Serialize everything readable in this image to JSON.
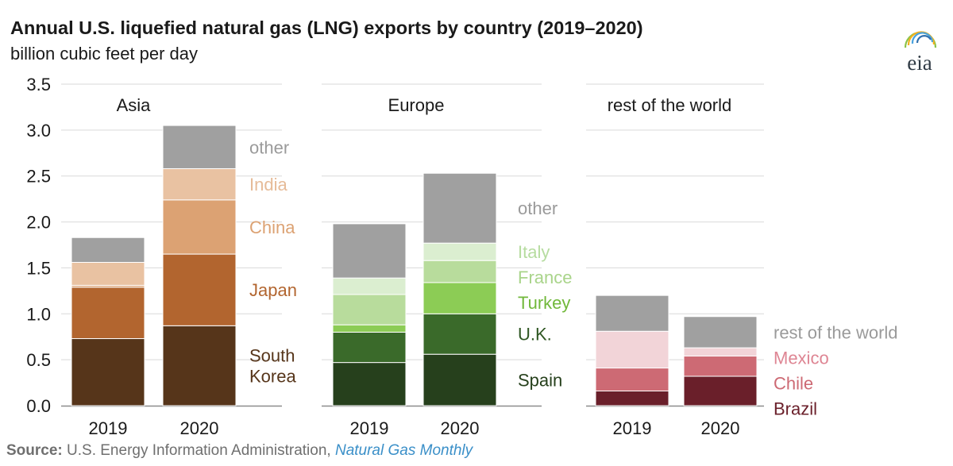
{
  "header": {
    "title": "Annual U.S. liquefied natural gas (LNG) exports by country (2019–2020)",
    "subtitle": "billion cubic feet per day"
  },
  "logo": {
    "text": "eia",
    "icon": "eia-logo-icon"
  },
  "source": {
    "label": "Source:",
    "org": "U.S. Energy Information Administration,",
    "publication": "Natural Gas Monthly"
  },
  "colors": {
    "gridline": "#d9d9d9",
    "axis": "#8c8c8c",
    "text": "#1a1a1a"
  },
  "chart_data": {
    "type": "bar",
    "stacked": true,
    "title": "Annual U.S. liquefied natural gas (LNG) exports by country (2019–2020)",
    "ylabel": "billion cubic feet per day",
    "ylim": [
      0,
      3.5
    ],
    "yticks": [
      "0.0",
      "0.5",
      "1.0",
      "1.5",
      "2.0",
      "2.5",
      "3.0",
      "3.5"
    ],
    "grid": true,
    "panels": [
      {
        "name": "Asia",
        "categories": [
          "2019",
          "2020"
        ],
        "series": [
          {
            "name": "South Korea",
            "label_lines": [
              "South",
              "Korea"
            ],
            "color": "#56351a",
            "label_color": "#56351a",
            "values": [
              0.73,
              0.87
            ]
          },
          {
            "name": "Japan",
            "label_lines": [
              "Japan"
            ],
            "color": "#b2652f",
            "label_color": "#b2652f",
            "values": [
              0.56,
              0.78
            ]
          },
          {
            "name": "China",
            "label_lines": [
              "China"
            ],
            "color": "#dca273",
            "label_color": "#dca273",
            "values": [
              0.02,
              0.59
            ]
          },
          {
            "name": "India",
            "label_lines": [
              "India"
            ],
            "color": "#e9c2a2",
            "label_color": "#e6bb98",
            "values": [
              0.25,
              0.34
            ]
          },
          {
            "name": "other",
            "label_lines": [
              "other"
            ],
            "color": "#a0a0a0",
            "label_color": "#9a9a9a",
            "values": [
              0.27,
              0.47
            ]
          }
        ]
      },
      {
        "name": "Europe",
        "categories": [
          "2019",
          "2020"
        ],
        "series": [
          {
            "name": "Spain",
            "label_lines": [
              "Spain"
            ],
            "color": "#26401c",
            "label_color": "#26401c",
            "values": [
              0.47,
              0.56
            ]
          },
          {
            "name": "U.K.",
            "label_lines": [
              "U.K."
            ],
            "color": "#3a6a2a",
            "label_color": "#2f5723",
            "values": [
              0.33,
              0.44
            ]
          },
          {
            "name": "Turkey",
            "label_lines": [
              "Turkey"
            ],
            "color": "#8ccc55",
            "label_color": "#71b83b",
            "values": [
              0.08,
              0.34
            ]
          },
          {
            "name": "France",
            "label_lines": [
              "France"
            ],
            "color": "#b8dc9c",
            "label_color": "#a9d48a",
            "values": [
              0.33,
              0.24
            ]
          },
          {
            "name": "Italy",
            "label_lines": [
              "Italy"
            ],
            "color": "#dbeed0",
            "label_color": "#b6dca0",
            "values": [
              0.18,
              0.19
            ]
          },
          {
            "name": "other",
            "label_lines": [
              "other"
            ],
            "color": "#a0a0a0",
            "label_color": "#9a9a9a",
            "values": [
              0.59,
              0.76
            ]
          }
        ]
      },
      {
        "name": "rest of the world",
        "categories": [
          "2019",
          "2020"
        ],
        "series": [
          {
            "name": "Brazil",
            "label_lines": [
              "Brazil"
            ],
            "color": "#6a1f2a",
            "label_color": "#6a1f2a",
            "values": [
              0.16,
              0.32
            ]
          },
          {
            "name": "Chile",
            "label_lines": [
              "Chile"
            ],
            "color": "#cd6a74",
            "label_color": "#cd6a74",
            "values": [
              0.25,
              0.22
            ]
          },
          {
            "name": "Mexico",
            "label_lines": [
              "Mexico"
            ],
            "color": "#f2d4d8",
            "label_color": "#de8593",
            "values": [
              0.4,
              0.09
            ]
          },
          {
            "name": "rest of the world",
            "label_lines": [
              "rest of the world"
            ],
            "color": "#a0a0a0",
            "label_color": "#9a9a9a",
            "values": [
              0.39,
              0.34
            ]
          }
        ]
      }
    ]
  }
}
